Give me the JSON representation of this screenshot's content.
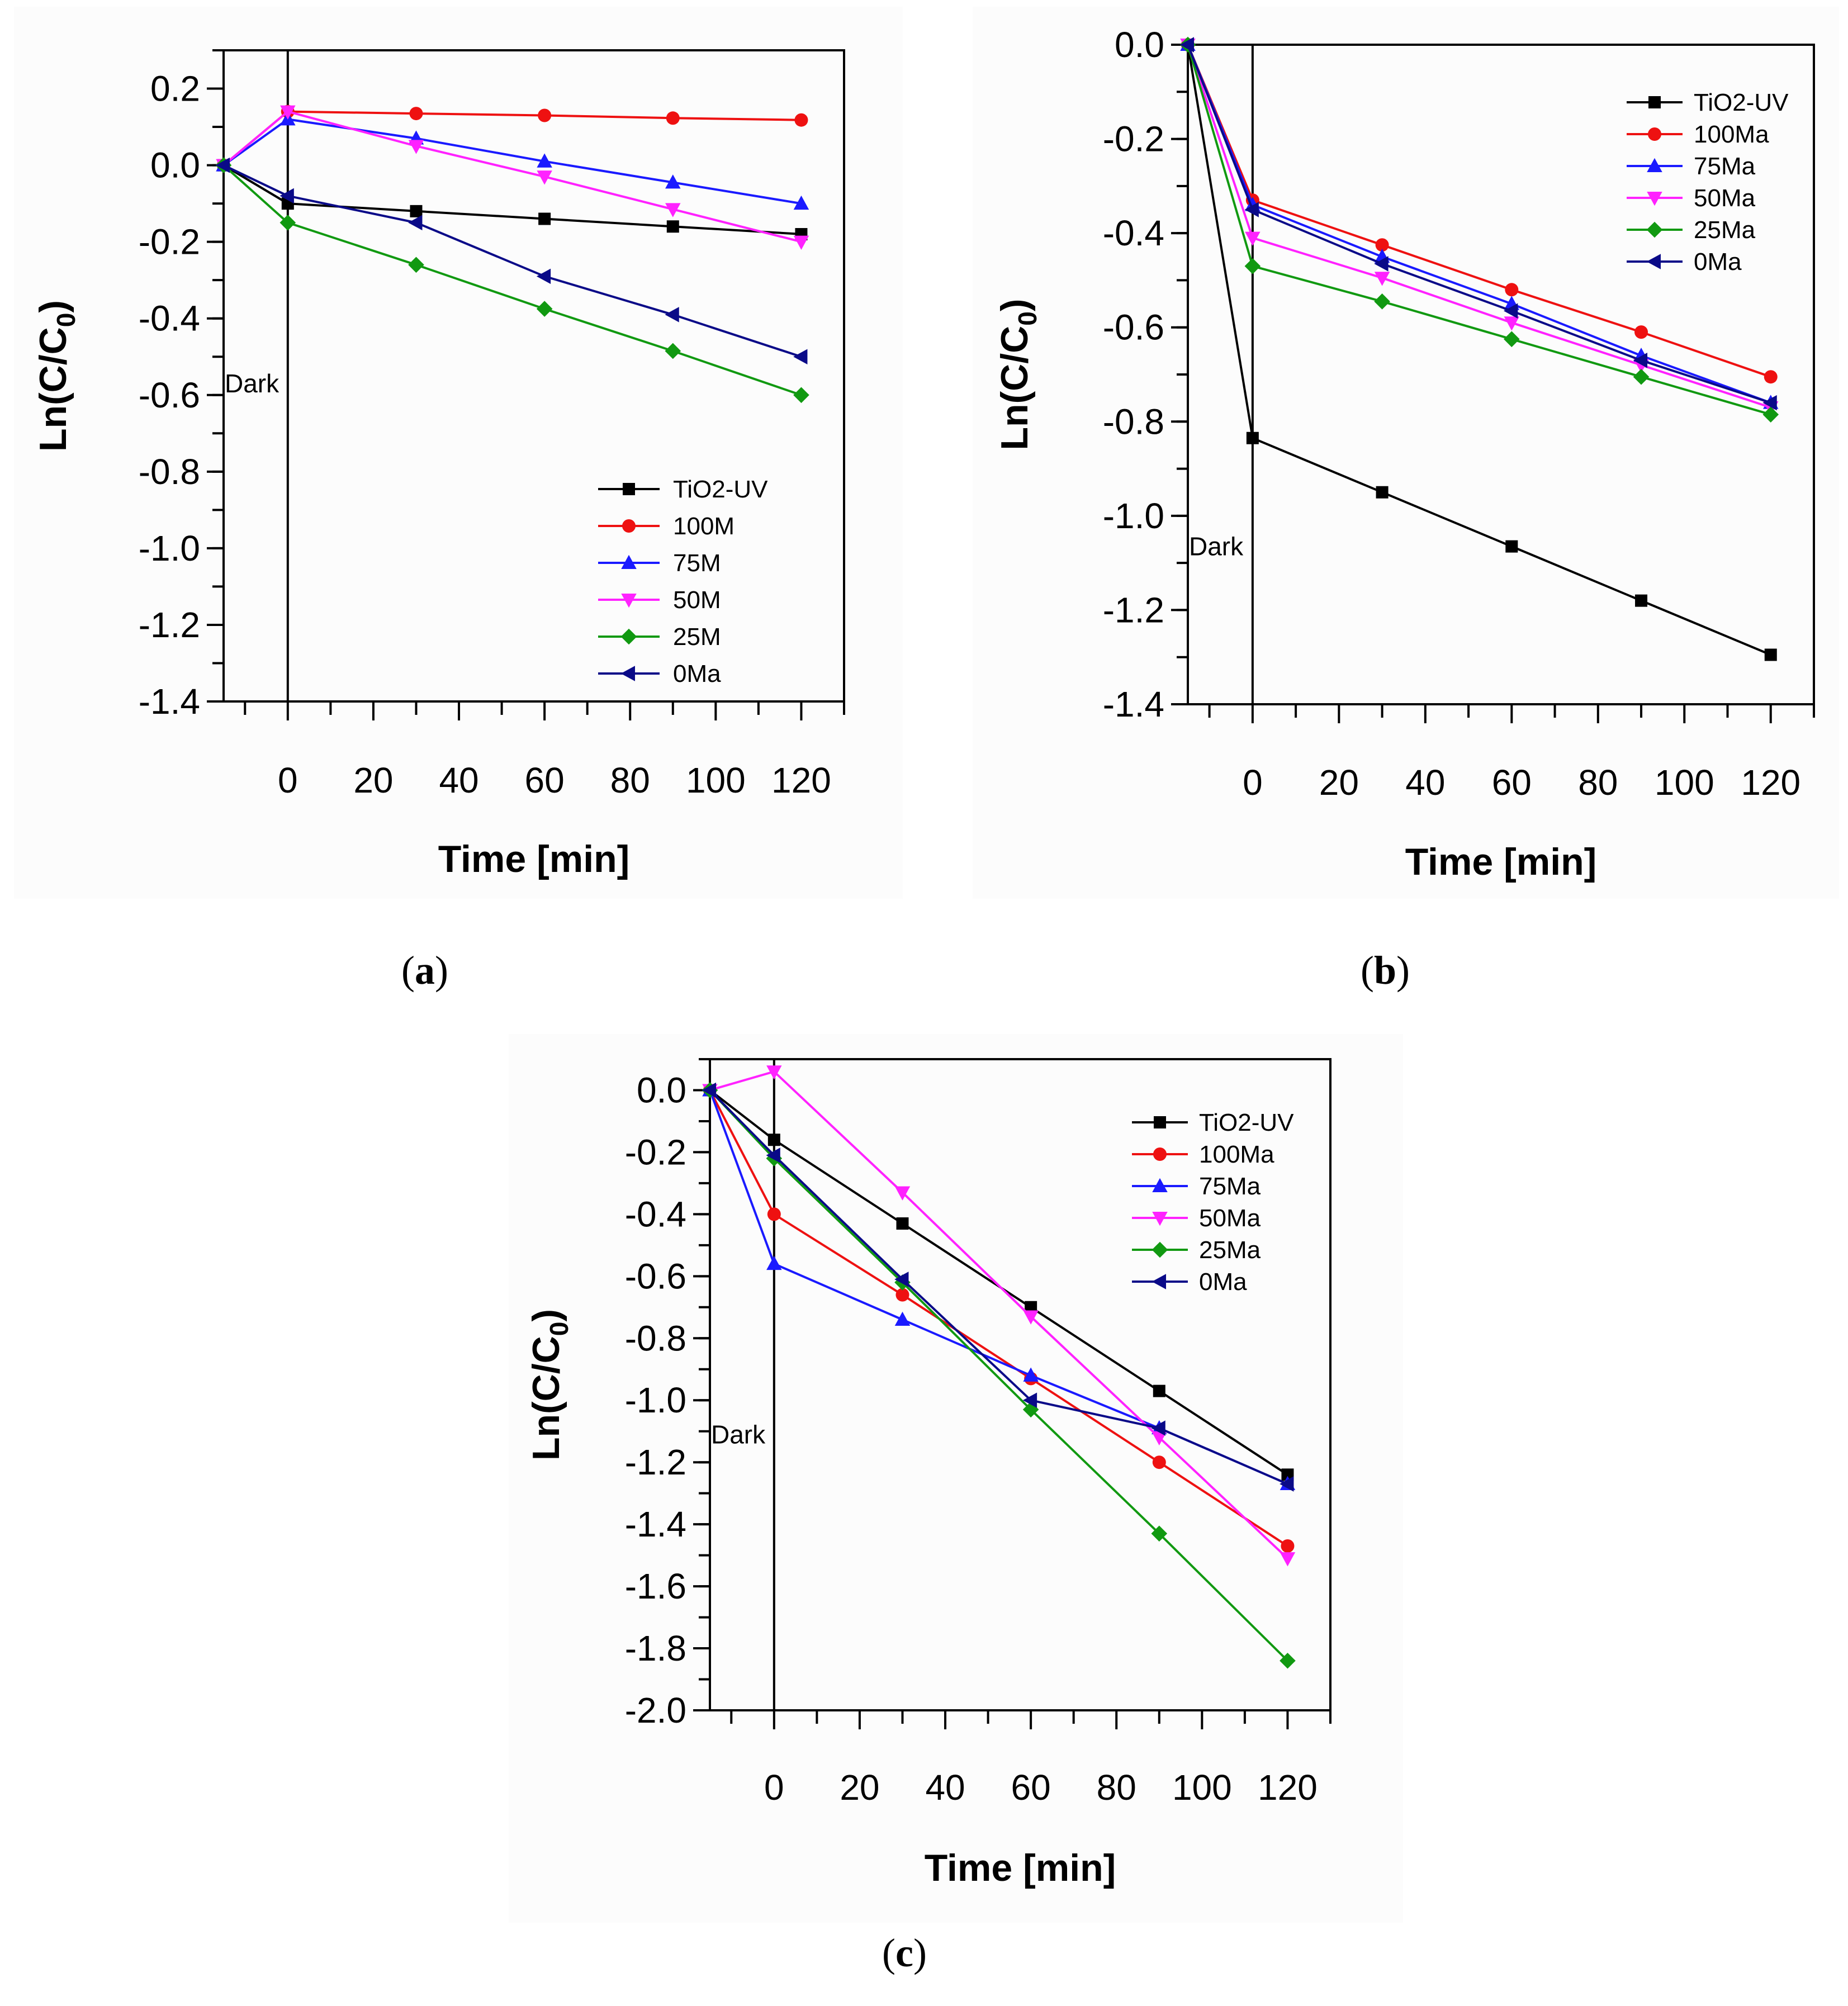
{
  "chart_data": [
    {
      "id": "a",
      "type": "line",
      "caption_letter": "a",
      "xlabel": "Time [min]",
      "ylabel": "Ln(C/C",
      "ylabel_sub": "0",
      "ylabel_close": ")",
      "ylim": [
        -1.4,
        0.3
      ],
      "xlim": [
        -15,
        130
      ],
      "xticks": [
        0,
        20,
        40,
        60,
        80,
        100,
        120
      ],
      "yticks": [
        0.2,
        0.0,
        -0.2,
        -0.4,
        -0.6,
        -0.8,
        -1.0,
        -1.2,
        -1.4
      ],
      "ytick_labels": [
        "0.2",
        "0.0",
        "-0.2",
        "-0.4",
        "-0.6",
        "-0.8",
        "-1.0",
        "-1.2",
        "-1.4"
      ],
      "annotation": "Dark",
      "annotation_y": -0.57,
      "x": [
        -15,
        0,
        30,
        60,
        90,
        120
      ],
      "series": [
        {
          "name": "TiO2-UV",
          "color": "#000000",
          "marker": "square",
          "values": [
            0,
            -0.1,
            -0.12,
            -0.14,
            -0.16,
            -0.18
          ]
        },
        {
          "name": "100M",
          "color": "#ee1111",
          "marker": "circle",
          "values": [
            0,
            0.14,
            0.135,
            0.13,
            0.123,
            0.118
          ]
        },
        {
          "name": "75M",
          "color": "#1a1aff",
          "marker": "triangle-up",
          "values": [
            0,
            0.12,
            0.07,
            0.01,
            -0.045,
            -0.1
          ]
        },
        {
          "name": "50M",
          "color": "#ff22ff",
          "marker": "triangle-down",
          "values": [
            0,
            0.14,
            0.05,
            -0.03,
            -0.115,
            -0.2
          ]
        },
        {
          "name": "25M",
          "color": "#119911",
          "marker": "diamond",
          "values": [
            0,
            -0.15,
            -0.26,
            -0.375,
            -0.485,
            -0.6
          ]
        },
        {
          "name": "0Ma",
          "color": "#0a0a88",
          "marker": "triangle-left",
          "values": [
            0,
            -0.08,
            -0.15,
            -0.29,
            -0.39,
            -0.5
          ]
        }
      ]
    },
    {
      "id": "b",
      "type": "line",
      "caption_letter": "b",
      "xlabel": "Time [min]",
      "ylabel": "Ln(C/C",
      "ylabel_sub": "0",
      "ylabel_close": ")",
      "ylim": [
        -1.4,
        0.0
      ],
      "xlim": [
        -15,
        130
      ],
      "xticks": [
        0,
        20,
        40,
        60,
        80,
        100,
        120
      ],
      "yticks": [
        0.0,
        -0.2,
        -0.4,
        -0.6,
        -0.8,
        -1.0,
        -1.2,
        -1.4
      ],
      "ytick_labels": [
        "0.0",
        "-0.2",
        "-0.4",
        "-0.6",
        "-0.8",
        "-1.0",
        "-1.2",
        "-1.4"
      ],
      "annotation": "Dark",
      "annotation_y": -1.065,
      "x": [
        -15,
        0,
        30,
        60,
        90,
        120
      ],
      "series": [
        {
          "name": "TiO2-UV",
          "color": "#000000",
          "marker": "square",
          "values": [
            0,
            -0.835,
            -0.95,
            -1.065,
            -1.18,
            -1.295
          ]
        },
        {
          "name": "100Ma",
          "color": "#ee1111",
          "marker": "circle",
          "values": [
            0,
            -0.33,
            -0.425,
            -0.52,
            -0.61,
            -0.705
          ]
        },
        {
          "name": "75Ma",
          "color": "#1a1aff",
          "marker": "triangle-up",
          "values": [
            0,
            -0.34,
            -0.45,
            -0.55,
            -0.66,
            -0.76
          ]
        },
        {
          "name": "50Ma",
          "color": "#ff22ff",
          "marker": "triangle-down",
          "values": [
            0,
            -0.41,
            -0.495,
            -0.59,
            -0.68,
            -0.77
          ]
        },
        {
          "name": "25Ma",
          "color": "#119911",
          "marker": "diamond",
          "values": [
            0,
            -0.47,
            -0.545,
            -0.625,
            -0.705,
            -0.785
          ]
        },
        {
          "name": "0Ma",
          "color": "#0a0a88",
          "marker": "triangle-left",
          "values": [
            0,
            -0.35,
            -0.465,
            -0.565,
            -0.67,
            -0.76
          ]
        }
      ]
    },
    {
      "id": "c",
      "type": "line",
      "caption_letter": "c",
      "xlabel": "Time [min]",
      "ylabel": "Ln(C/C",
      "ylabel_sub": "0",
      "ylabel_close": ")",
      "ylim": [
        -2.0,
        0.1
      ],
      "xlim": [
        -15,
        130
      ],
      "xticks": [
        0,
        20,
        40,
        60,
        80,
        100,
        120
      ],
      "yticks": [
        0.0,
        -0.2,
        -0.4,
        -0.6,
        -0.8,
        -1.0,
        -1.2,
        -1.4,
        -1.6,
        -1.8,
        -2.0
      ],
      "ytick_labels": [
        "0.0",
        "-0.2",
        "-0.4",
        "-0.6",
        "-0.8",
        "-1.0",
        "-1.2",
        "-1.4",
        "-1.6",
        "-1.8",
        "-2.0"
      ],
      "annotation": "Dark",
      "annotation_y": -1.11,
      "x": [
        -15,
        0,
        30,
        60,
        90,
        120
      ],
      "series": [
        {
          "name": "TiO2-UV",
          "color": "#000000",
          "marker": "square",
          "values": [
            0,
            -0.16,
            -0.43,
            -0.7,
            -0.97,
            -1.24
          ]
        },
        {
          "name": "100Ma",
          "color": "#ee1111",
          "marker": "circle",
          "values": [
            0,
            -0.4,
            -0.66,
            -0.93,
            -1.2,
            -1.47
          ]
        },
        {
          "name": "75Ma",
          "color": "#1a1aff",
          "marker": "triangle-up",
          "values": [
            0,
            -0.56,
            -0.74,
            -0.92,
            -1.09,
            -1.27
          ]
        },
        {
          "name": "50Ma",
          "color": "#ff22ff",
          "marker": "triangle-down",
          "values": [
            0,
            0.06,
            -0.33,
            -0.73,
            -1.12,
            -1.51
          ]
        },
        {
          "name": "25Ma",
          "color": "#119911",
          "marker": "diamond",
          "values": [
            0,
            -0.22,
            -0.62,
            -1.03,
            -1.43,
            -1.84
          ]
        },
        {
          "name": "0Ma",
          "color": "#0a0a88",
          "marker": "triangle-left",
          "values": [
            0,
            -0.21,
            -0.61,
            -1.0,
            -1.09,
            -1.27
          ]
        }
      ]
    }
  ]
}
